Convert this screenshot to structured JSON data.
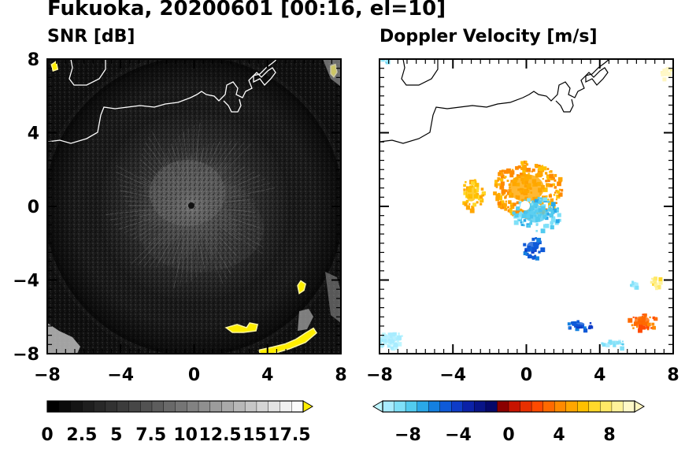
{
  "title": "Fukuoka, 20200601 [00:16, el=10]",
  "chart_data": [
    {
      "type": "heatmap",
      "title": "SNR [dB]",
      "xlim": [
        -8,
        8
      ],
      "ylim": [
        -8,
        8
      ],
      "x_ticks": [
        -8,
        -4,
        0,
        4,
        8
      ],
      "y_ticks": [
        8,
        4,
        0,
        -4,
        -8
      ],
      "x_tick_labels": [
        "−8",
        "−4",
        "0",
        "4",
        "8"
      ],
      "y_tick_labels": [
        "8",
        "4",
        "0",
        "−4",
        "−8"
      ],
      "colorbar": {
        "range": [
          0,
          18.5
        ],
        "ticks": [
          0,
          2.5,
          5,
          7.5,
          10,
          12.5,
          15,
          17.5
        ],
        "tick_labels": [
          "0",
          "2.5",
          "5",
          "7.5",
          "10",
          "12.5",
          "15",
          "17.5"
        ],
        "colors": [
          "#000000",
          "#0a0a0a",
          "#141414",
          "#1e1e1e",
          "#282828",
          "#323232",
          "#3c3c3c",
          "#474747",
          "#525252",
          "#5d5d5d",
          "#696969",
          "#757575",
          "#828282",
          "#8f8f8f",
          "#9c9c9c",
          "#aaaaaa",
          "#b8b8b8",
          "#c6c6c6",
          "#d4d4d4",
          "#e2e2e2",
          "#f0f0f0",
          "#fafafa"
        ],
        "over_color": "#ffee00"
      },
      "features": [
        {
          "kind": "high-snr-echo",
          "value": 18.5,
          "x": 2.6,
          "y": -6.5
        },
        {
          "kind": "high-snr-echo",
          "value": 18.5,
          "x": 5.0,
          "y": -7.3
        },
        {
          "kind": "high-snr-echo",
          "value": 18.5,
          "x": 5.9,
          "y": -4.3
        },
        {
          "kind": "high-snr-echo",
          "value": 18.5,
          "x": -7.6,
          "y": 7.7
        },
        {
          "kind": "high-snr-echo",
          "value": 18.5,
          "x": 7.7,
          "y": 7.2
        }
      ]
    },
    {
      "type": "heatmap",
      "title": "Doppler Velocity [m/s]",
      "xlim": [
        -8,
        8
      ],
      "ylim": [
        -8,
        8
      ],
      "x_ticks": [
        -8,
        -4,
        0,
        4,
        8
      ],
      "y_ticks": [
        8,
        4,
        0,
        -4,
        -8
      ],
      "x_tick_labels": [
        "−8",
        "−4",
        "0",
        "4",
        "8"
      ],
      "colorbar": {
        "range": [
          -10,
          10
        ],
        "ticks": [
          -8,
          -4,
          0,
          4,
          8
        ],
        "tick_labels": [
          "−8",
          "−4",
          "0",
          "4",
          "8"
        ],
        "under_color": "#bff6ff",
        "over_color": "#fff6c0",
        "colors": [
          "#a8ecff",
          "#7fe0f8",
          "#52cbef",
          "#2aa8e8",
          "#1480e0",
          "#0f5ad8",
          "#0e3cc8",
          "#0b22a8",
          "#081488",
          "#06086a",
          "#8b0000",
          "#c81400",
          "#e83000",
          "#ff4a00",
          "#ff6a00",
          "#ff8a00",
          "#ffa600",
          "#ffc000",
          "#ffd82a",
          "#ffe866",
          "#fff29a",
          "#fff8c8"
        ]
      },
      "features": [
        {
          "kind": "velocity-echo",
          "value": 5,
          "x": 0,
          "y": 1
        },
        {
          "kind": "velocity-echo",
          "value": -8,
          "x": 0.5,
          "y": -0.4
        },
        {
          "kind": "velocity-echo",
          "value": 6,
          "x": -3.0,
          "y": 0.7
        },
        {
          "kind": "velocity-echo",
          "value": -5,
          "x": 0.3,
          "y": -2.2
        },
        {
          "kind": "velocity-echo",
          "value": -5,
          "x": 2.8,
          "y": -6.4
        },
        {
          "kind": "velocity-echo",
          "value": 3,
          "x": 6.3,
          "y": -6.2
        },
        {
          "kind": "velocity-echo",
          "value": -9,
          "x": 4.8,
          "y": -7.4
        },
        {
          "kind": "velocity-echo",
          "value": 8,
          "x": 7.0,
          "y": -4.0
        },
        {
          "kind": "velocity-echo",
          "value": -9,
          "x": 5.8,
          "y": -4.2
        },
        {
          "kind": "velocity-echo",
          "value": -10,
          "x": -7.5,
          "y": -7.2
        },
        {
          "kind": "velocity-echo",
          "value": 10,
          "x": 7.6,
          "y": 7.3
        },
        {
          "kind": "velocity-echo",
          "value": -9,
          "x": -7.8,
          "y": 8
        }
      ]
    }
  ]
}
